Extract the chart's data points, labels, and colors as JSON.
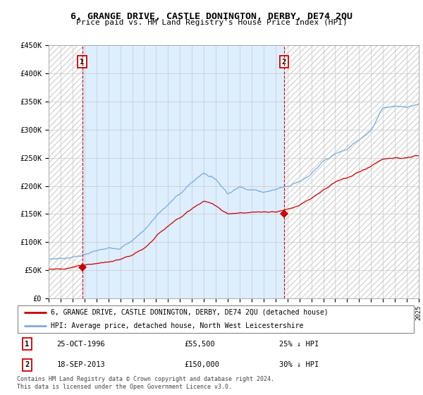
{
  "title": "6, GRANGE DRIVE, CASTLE DONINGTON, DERBY, DE74 2QU",
  "subtitle": "Price paid vs. HM Land Registry's House Price Index (HPI)",
  "xmin_year": 1994,
  "xmax_year": 2025,
  "ymin": 0,
  "ymax": 450000,
  "yticks": [
    0,
    50000,
    100000,
    150000,
    200000,
    250000,
    300000,
    350000,
    400000,
    450000
  ],
  "ytick_labels": [
    "£0",
    "£50K",
    "£100K",
    "£150K",
    "£200K",
    "£250K",
    "£300K",
    "£350K",
    "£400K",
    "£450K"
  ],
  "xtick_years": [
    1994,
    1995,
    1996,
    1997,
    1998,
    1999,
    2000,
    2001,
    2002,
    2003,
    2004,
    2005,
    2006,
    2007,
    2008,
    2009,
    2010,
    2011,
    2012,
    2013,
    2014,
    2015,
    2016,
    2017,
    2018,
    2019,
    2020,
    2021,
    2022,
    2023,
    2024,
    2025
  ],
  "sale1_year": 1996.81,
  "sale1_price": 55500,
  "sale1_label": "1",
  "sale1_date": "25-OCT-1996",
  "sale1_pct": "25% ↓ HPI",
  "sale2_year": 2013.72,
  "sale2_price": 150000,
  "sale2_label": "2",
  "sale2_date": "18-SEP-2013",
  "sale2_pct": "30% ↓ HPI",
  "legend_red": "6, GRANGE DRIVE, CASTLE DONINGTON, DERBY, DE74 2QU (detached house)",
  "legend_blue": "HPI: Average price, detached house, North West Leicestershire",
  "footer": "Contains HM Land Registry data © Crown copyright and database right 2024.\nThis data is licensed under the Open Government Licence v3.0.",
  "red_color": "#cc0000",
  "blue_color": "#7aacdc",
  "mid_bg_color": "#ddeeff",
  "hatch_color": "#cccccc"
}
